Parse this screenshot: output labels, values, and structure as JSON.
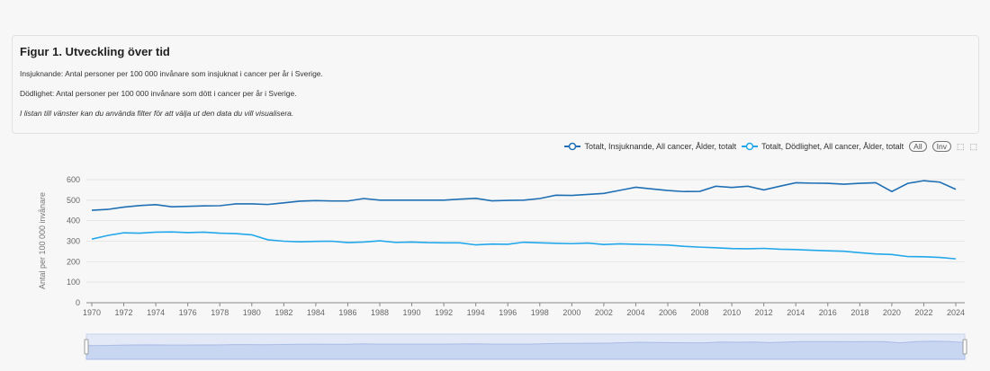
{
  "header": {
    "title": "Figur 1. Utveckling över tid",
    "line1": "Insjuknande: Antal personer per 100 000 invånare som insjuknat i cancer per år i Sverige.",
    "line2": "Dödlighet: Antal personer per 100 000 invånare som dött i cancer per år i Sverige.",
    "line3": "I listan till vänster kan du använda filter för att välja ut den data du vill visualisera."
  },
  "toolbar": {
    "all": "All",
    "inv": "Inv"
  },
  "chart_data": {
    "type": "line",
    "title": "",
    "xlabel": "",
    "ylabel": "Antal per 100 000 invånare",
    "ylim": [
      0,
      600
    ],
    "yticks": [
      "0",
      "100",
      "200",
      "300",
      "400",
      "500",
      "600"
    ],
    "x": [
      1970,
      1971,
      1972,
      1973,
      1974,
      1975,
      1976,
      1977,
      1978,
      1979,
      1980,
      1981,
      1982,
      1983,
      1984,
      1985,
      1986,
      1987,
      1988,
      1989,
      1990,
      1991,
      1992,
      1993,
      1994,
      1995,
      1996,
      1997,
      1998,
      1999,
      2000,
      2001,
      2002,
      2003,
      2004,
      2005,
      2006,
      2007,
      2008,
      2009,
      2010,
      2011,
      2012,
      2013,
      2014,
      2015,
      2016,
      2017,
      2018,
      2019,
      2020,
      2021,
      2022,
      2023,
      2024
    ],
    "legend_position": "top-right",
    "grid": true,
    "series": [
      {
        "name": "Totalt, Insjuknande, All cancer, Ålder, totalt",
        "color": "#1f6fb4",
        "values": [
          451,
          455,
          466,
          474,
          478,
          468,
          470,
          472,
          473,
          482,
          482,
          479,
          487,
          495,
          498,
          496,
          496,
          508,
          500,
          500,
          500,
          500,
          500,
          505,
          509,
          497,
          499,
          500,
          508,
          524,
          523,
          528,
          533,
          548,
          563,
          555,
          547,
          542,
          543,
          568,
          562,
          568,
          550,
          568,
          585,
          583,
          582,
          578,
          582,
          585,
          542,
          582,
          595,
          588,
          553
        ]
      },
      {
        "name": "Totalt, Dödlighet, All cancer, Ålder, totalt",
        "color": "#22a7ea",
        "values": [
          310,
          328,
          341,
          339,
          344,
          345,
          342,
          344,
          339,
          337,
          331,
          307,
          300,
          297,
          299,
          300,
          293,
          296,
          302,
          294,
          296,
          293,
          292,
          292,
          282,
          286,
          285,
          295,
          292,
          290,
          288,
          291,
          284,
          287,
          285,
          283,
          281,
          275,
          271,
          268,
          264,
          263,
          265,
          261,
          259,
          256,
          253,
          251,
          244,
          238,
          235,
          225,
          224,
          221,
          214
        ]
      }
    ]
  }
}
